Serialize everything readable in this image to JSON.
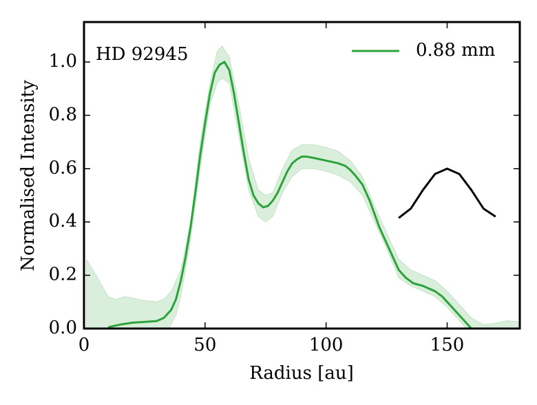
{
  "chart_data": {
    "type": "line",
    "annotation": "HD 92945",
    "xlabel": "Radius [au]",
    "ylabel": "Normalised Intensity",
    "xlim": [
      0,
      180
    ],
    "ylim": [
      0,
      1.15
    ],
    "xticks": [
      0,
      50,
      100,
      150
    ],
    "yticks": [
      {
        "value": 0,
        "label": "0.0"
      },
      {
        "value": 0.2,
        "label": "0.2"
      },
      {
        "value": 0.4,
        "label": "0.4"
      },
      {
        "value": 0.6,
        "label": "0.6"
      },
      {
        "value": 0.8,
        "label": "0.8"
      },
      {
        "value": 1.0,
        "label": "1.0"
      }
    ],
    "legend": "upper right",
    "series": [
      {
        "name": "0.88 mm",
        "color": "#2ca33a",
        "x": [
          10,
          15,
          20,
          25,
          30,
          33,
          36,
          38,
          40,
          42,
          44,
          46,
          48,
          50,
          52,
          54,
          56,
          58,
          60,
          62,
          64,
          66,
          68,
          70,
          72,
          74,
          76,
          78,
          80,
          82,
          84,
          86,
          88,
          90,
          92,
          95,
          100,
          105,
          108,
          110,
          112,
          115,
          118,
          120,
          122,
          125,
          128,
          130,
          133,
          136,
          140,
          145,
          148,
          150,
          152,
          155,
          158,
          160
        ],
        "values": [
          0.005,
          0.015,
          0.022,
          0.025,
          0.028,
          0.04,
          0.07,
          0.11,
          0.18,
          0.27,
          0.38,
          0.51,
          0.65,
          0.77,
          0.88,
          0.96,
          0.99,
          1.0,
          0.97,
          0.88,
          0.77,
          0.66,
          0.56,
          0.5,
          0.47,
          0.455,
          0.46,
          0.48,
          0.51,
          0.55,
          0.59,
          0.62,
          0.635,
          0.645,
          0.645,
          0.64,
          0.63,
          0.62,
          0.61,
          0.595,
          0.575,
          0.54,
          0.48,
          0.43,
          0.38,
          0.32,
          0.26,
          0.22,
          0.19,
          0.17,
          0.16,
          0.14,
          0.12,
          0.1,
          0.08,
          0.05,
          0.02,
          0.0
        ],
        "band": {
          "x_upper": [
            1,
            5,
            10,
            13,
            17,
            20,
            25,
            30,
            33,
            36,
            40,
            44,
            48,
            52,
            55,
            57,
            60,
            64,
            68,
            72,
            75,
            78,
            82,
            86,
            90,
            95,
            100,
            105,
            110,
            115,
            120,
            125,
            130,
            135,
            140,
            145,
            150,
            155,
            160,
            165,
            170,
            175,
            180
          ],
          "upper": [
            0.26,
            0.2,
            0.12,
            0.11,
            0.12,
            0.115,
            0.105,
            0.1,
            0.11,
            0.14,
            0.22,
            0.4,
            0.7,
            0.92,
            1.04,
            1.06,
            1.02,
            0.84,
            0.64,
            0.52,
            0.5,
            0.51,
            0.6,
            0.67,
            0.69,
            0.69,
            0.68,
            0.665,
            0.63,
            0.57,
            0.46,
            0.36,
            0.26,
            0.22,
            0.2,
            0.18,
            0.14,
            0.09,
            0.04,
            0.015,
            0.02,
            0.03,
            0.025
          ],
          "x_lower": [
            1,
            35,
            38,
            40,
            44,
            48,
            52,
            55,
            57,
            60,
            64,
            68,
            72,
            75,
            78,
            82,
            86,
            90,
            95,
            100,
            105,
            110,
            115,
            120,
            125,
            130,
            135,
            140,
            145,
            150,
            155,
            158,
            180
          ],
          "lower": [
            0,
            0,
            0.05,
            0.12,
            0.33,
            0.6,
            0.84,
            0.92,
            0.94,
            0.92,
            0.72,
            0.52,
            0.42,
            0.4,
            0.42,
            0.51,
            0.57,
            0.6,
            0.6,
            0.59,
            0.575,
            0.55,
            0.5,
            0.4,
            0.3,
            0.19,
            0.16,
            0.14,
            0.12,
            0.08,
            0.03,
            0,
            0
          ]
        }
      }
    ],
    "beam": {
      "color": "#000000",
      "x": [
        130,
        135,
        140,
        145,
        150,
        155,
        160,
        165,
        170
      ],
      "values": [
        0.415,
        0.45,
        0.52,
        0.58,
        0.6,
        0.58,
        0.52,
        0.45,
        0.42
      ]
    }
  }
}
